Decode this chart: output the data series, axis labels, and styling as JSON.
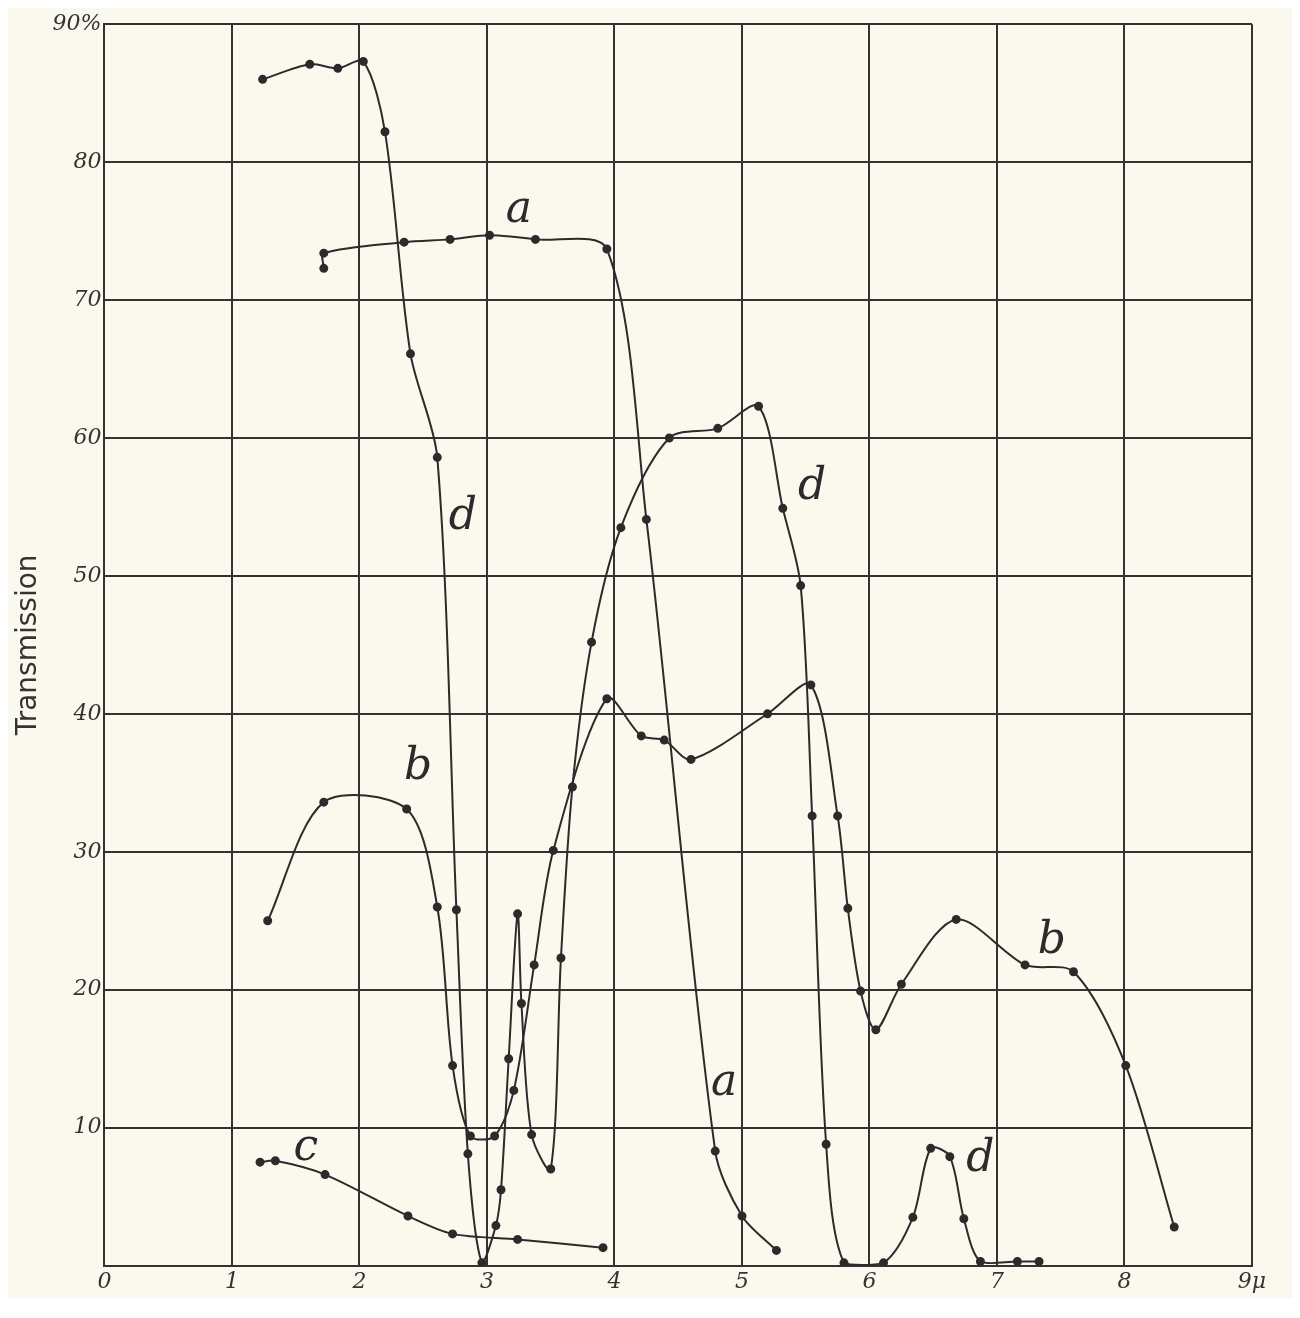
{
  "chart_data": {
    "type": "line",
    "ylabel": "Transmission",
    "xlim": [
      0,
      9
    ],
    "xticks": [
      0,
      1,
      2,
      3,
      4,
      5,
      6,
      7,
      8,
      {
        "value": 9,
        "label": "9μ"
      }
    ],
    "ylim": [
      0,
      90
    ],
    "yticks": [
      10,
      20,
      30,
      40,
      50,
      60,
      70,
      80,
      {
        "value": 90,
        "label": "90%"
      }
    ],
    "grid": true,
    "legend": false,
    "marker": "circle",
    "line_style": "solid",
    "series": [
      {
        "name": "a",
        "color": "#2b2b2b",
        "x": [
          1.72,
          1.72,
          2.35,
          2.71,
          3.02,
          3.38,
          3.94,
          4.25,
          4.79,
          5.0,
          5.27
        ],
        "values": [
          72.3,
          73.4,
          74.2,
          74.4,
          74.7,
          74.4,
          73.7,
          54.1,
          8.3,
          3.6,
          1.1
        ]
      },
      {
        "name": "b",
        "color": "#2b2b2b",
        "x": [
          1.28,
          1.72,
          2.37,
          2.61,
          2.73,
          2.87,
          3.06,
          3.21,
          3.37,
          3.52,
          3.94,
          4.21,
          4.39,
          4.6,
          5.2,
          5.54,
          5.75,
          5.83,
          5.93,
          6.05,
          6.25,
          6.68,
          7.22,
          7.6,
          8.01,
          8.39
        ],
        "values": [
          25.0,
          33.6,
          33.1,
          26.0,
          14.5,
          9.4,
          9.4,
          12.7,
          21.8,
          30.1,
          41.1,
          38.4,
          38.1,
          36.7,
          40.0,
          42.1,
          32.6,
          25.9,
          19.9,
          17.1,
          20.4,
          25.1,
          21.8,
          21.3,
          14.5,
          2.8
        ]
      },
      {
        "name": "c",
        "color": "#2b2b2b",
        "x": [
          1.22,
          1.34,
          1.73,
          2.38,
          2.73,
          3.24,
          3.91
        ],
        "values": [
          7.5,
          7.6,
          6.6,
          3.6,
          2.3,
          1.9,
          1.3
        ]
      },
      {
        "name": "d",
        "color": "#2b2b2b",
        "x": [
          1.24,
          1.61,
          1.83,
          2.03,
          2.2,
          2.4,
          2.61,
          2.76,
          2.85,
          2.96,
          3.07,
          3.11,
          3.17,
          3.24,
          3.27,
          3.35,
          3.5,
          3.58,
          3.67,
          3.82,
          4.05,
          4.43,
          4.81,
          5.13,
          5.32,
          5.46,
          5.55,
          5.66,
          5.8,
          6.11,
          6.34,
          6.48,
          6.63,
          6.74,
          6.87,
          7.16,
          7.33
        ],
        "values": [
          86.0,
          87.1,
          86.8,
          87.3,
          82.2,
          66.1,
          58.6,
          25.8,
          8.1,
          0.2,
          2.9,
          5.5,
          15.0,
          25.5,
          19.0,
          9.5,
          7.0,
          22.3,
          34.7,
          45.2,
          53.5,
          60.0,
          60.7,
          62.3,
          54.9,
          49.3,
          32.6,
          8.8,
          0.2,
          0.2,
          3.5,
          8.5,
          7.9,
          3.4,
          0.3,
          0.3,
          0.3
        ]
      }
    ]
  }
}
